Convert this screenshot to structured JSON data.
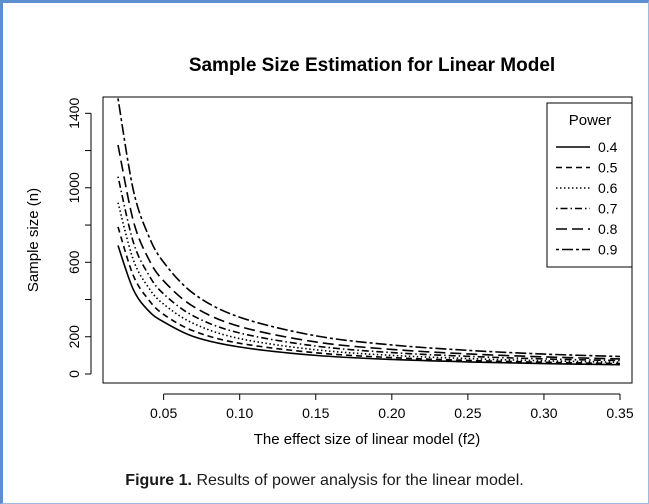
{
  "caption": {
    "label": "Figure 1.",
    "text": "Results of power analysis for the linear model."
  },
  "chart_data": {
    "type": "line",
    "title": "Sample Size Estimation for Linear Model",
    "xlabel": "The effect size of linear model (f2)",
    "ylabel": "Sample size (n)",
    "xlim": [
      0.02,
      0.35
    ],
    "ylim": [
      0,
      1450
    ],
    "xticks": [
      "0.05",
      "0.10",
      "0.15",
      "0.20",
      "0.25",
      "0.30",
      "0.35"
    ],
    "yticks": [
      "0",
      "200",
      "600",
      "1000",
      "1400"
    ],
    "legend": {
      "title": "Power",
      "position": "top-right"
    },
    "x": [
      0.02,
      0.03,
      0.04,
      0.05,
      0.07,
      0.1,
      0.15,
      0.2,
      0.25,
      0.3,
      0.35
    ],
    "series": [
      {
        "name": "0.4",
        "dash": "solid",
        "values": [
          690,
          455,
          340,
          280,
          200,
          145,
          100,
          78,
          65,
          56,
          50
        ]
      },
      {
        "name": "0.5",
        "dash": "dashed",
        "values": [
          790,
          530,
          400,
          320,
          230,
          165,
          114,
          88,
          73,
          63,
          56
        ]
      },
      {
        "name": "0.6",
        "dash": "dotted",
        "values": [
          920,
          615,
          465,
          375,
          270,
          190,
          130,
          100,
          83,
          71,
          63
        ]
      },
      {
        "name": "0.7",
        "dash": "dotdash",
        "values": [
          1060,
          710,
          535,
          430,
          310,
          220,
          150,
          115,
          95,
          81,
          72
        ]
      },
      {
        "name": "0.8",
        "dash": "longdash",
        "values": [
          1230,
          825,
          620,
          500,
          360,
          255,
          172,
          132,
          108,
          92,
          81
        ]
      },
      {
        "name": "0.9",
        "dash": "twodash",
        "values": [
          1480,
          990,
          745,
          600,
          430,
          305,
          205,
          156,
          127,
          107,
          94
        ]
      }
    ]
  }
}
